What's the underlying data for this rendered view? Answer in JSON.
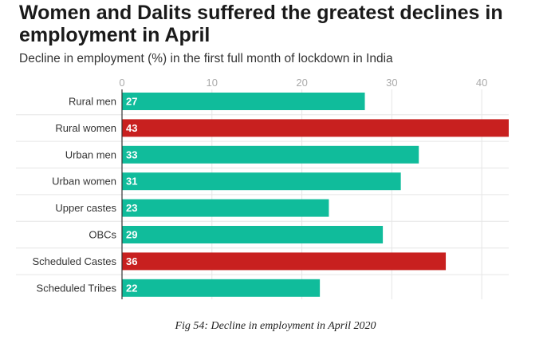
{
  "chart_data": {
    "type": "bar",
    "orientation": "horizontal",
    "title": "Women and Dalits suffered the greatest declines in employment in April",
    "subtitle": "Decline in employment (%) in the first full month of lockdown in India",
    "categories": [
      "Rural men",
      "Rural women",
      "Urban men",
      "Urban women",
      "Upper castes",
      "OBCs",
      "Scheduled Castes",
      "Scheduled Tribes"
    ],
    "values": [
      27,
      43,
      33,
      31,
      23,
      29,
      36,
      22
    ],
    "highlight": [
      false,
      true,
      false,
      false,
      false,
      false,
      true,
      false
    ],
    "xticks": [
      0,
      10,
      20,
      30,
      40
    ],
    "xlim": [
      0,
      43
    ],
    "grid": true,
    "colors": {
      "default": "#10bc9b",
      "highlight": "#c8201f",
      "grid": "#e6e6e6",
      "axis": "#333333"
    }
  },
  "caption": "Fig 54: Decline in employment in April 2020"
}
